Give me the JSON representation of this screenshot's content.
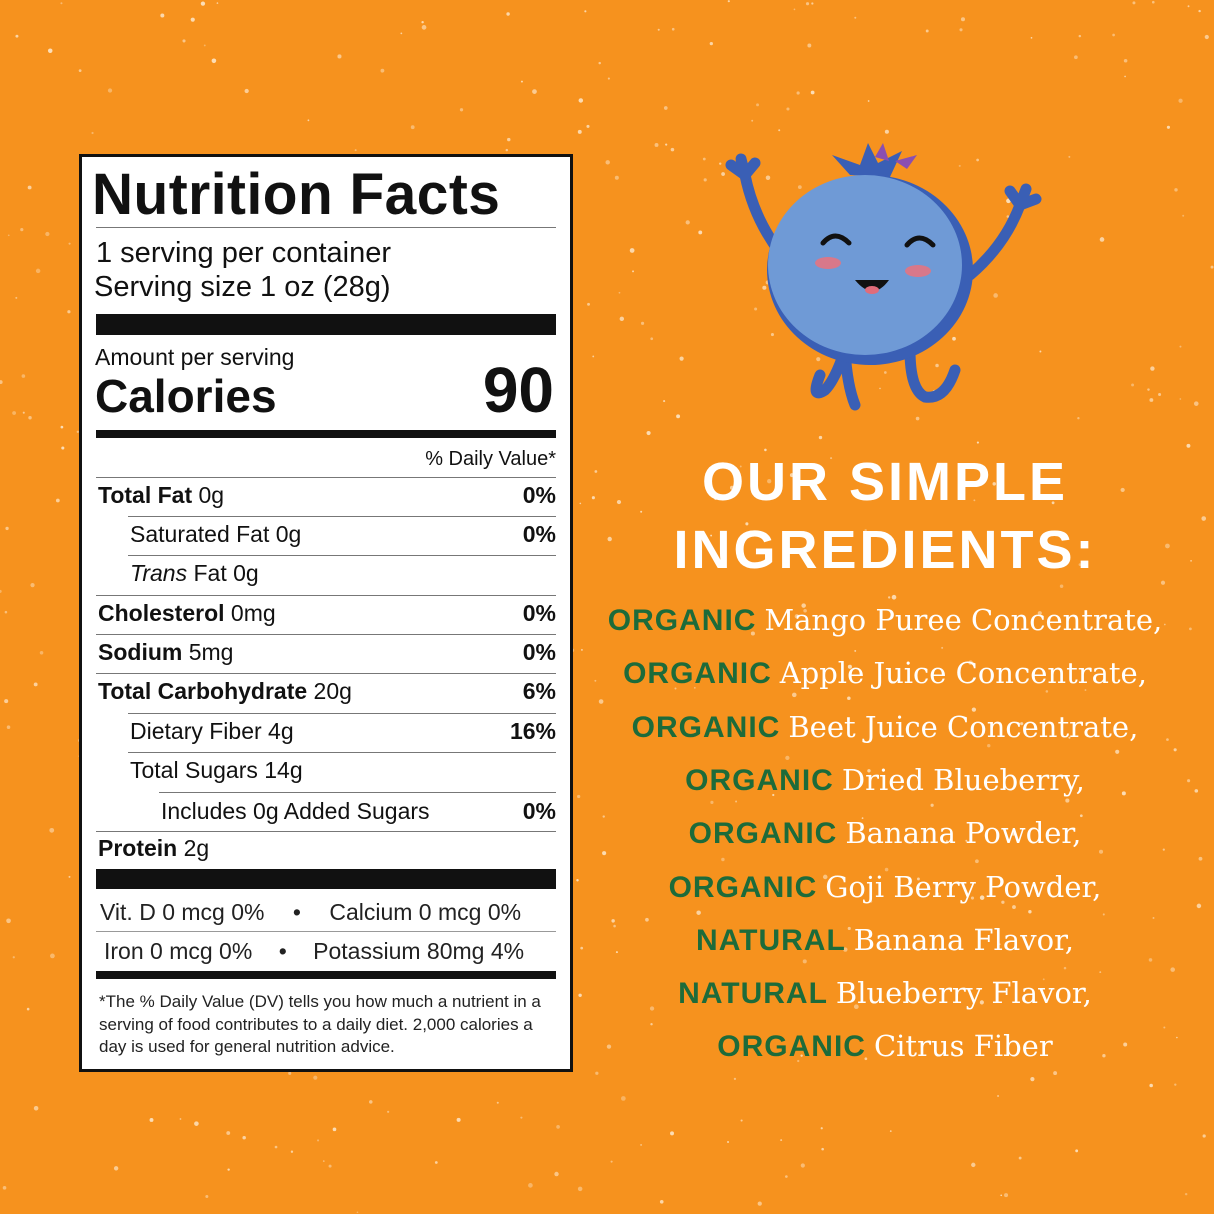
{
  "colors": {
    "background": "#f6921e",
    "prefix_green": "#1d6b3a",
    "berry": "#6f9ad6",
    "berry_dark": "#3a5fb5"
  },
  "label": {
    "title": "Nutrition Facts",
    "servings": "1 serving per container",
    "serving_size": "Serving size 1 oz (28g)",
    "amount_per_serving": "Amount per serving",
    "calories_label": "Calories",
    "calories_value": "90",
    "dv_header": "% Daily Value*",
    "rows": [
      {
        "name": "Total Fat",
        "amount": "0g",
        "dv": "0%"
      },
      {
        "name": "Saturated Fat 0g",
        "amount": "",
        "dv": "0%"
      },
      {
        "name": "Trans",
        "amount": "Fat 0g",
        "dv": ""
      },
      {
        "name": "Cholesterol",
        "amount": "0mg",
        "dv": "0%"
      },
      {
        "name": "Sodium",
        "amount": "5mg",
        "dv": "0%"
      },
      {
        "name": "Total Carbohydrate",
        "amount": "20g",
        "dv": "6%"
      },
      {
        "name": "Dietary Fiber 4g",
        "amount": "",
        "dv": "16%"
      },
      {
        "name": "Total Sugars 14g",
        "amount": "",
        "dv": ""
      },
      {
        "name": "Includes 0g Added Sugars",
        "amount": "",
        "dv": "0%"
      },
      {
        "name": "Protein",
        "amount": "2g",
        "dv": ""
      }
    ],
    "vitamins": [
      {
        "left": "Vit. D 0 mcg 0%",
        "sep": "•",
        "right": "Calcium  0 mcg 0%"
      },
      {
        "left": "Iron 0 mcg 0%",
        "sep": "•",
        "right": "Potassium 80mg 4%"
      }
    ],
    "footnote": "*The % Daily Value (DV) tells you how much a nutrient in a serving of food contributes to a daily diet. 2,000 calories a day is used for general nutrition advice."
  },
  "ingredients": {
    "heading_line1": "OUR SIMPLE",
    "heading_line2": "INGREDIENTS:",
    "items": [
      {
        "prefix": "ORGANIC",
        "text": "Mango Puree Concentrate,"
      },
      {
        "prefix": "ORGANIC",
        "text": "Apple Juice Concentrate,"
      },
      {
        "prefix": "ORGANIC",
        "text": "Beet Juice Concentrate,"
      },
      {
        "prefix": "ORGANIC",
        "text": "Dried Blueberry,"
      },
      {
        "prefix": "ORGANIC",
        "text": "Banana Powder,"
      },
      {
        "prefix": "ORGANIC",
        "text": "Goji Berry Powder,"
      },
      {
        "prefix": "NATURAL",
        "text": "Banana Flavor,"
      },
      {
        "prefix": "NATURAL",
        "text": "Blueberry Flavor,"
      },
      {
        "prefix": "ORGANIC",
        "text": "Citrus Fiber"
      }
    ]
  },
  "mascot": "blueberry-character"
}
